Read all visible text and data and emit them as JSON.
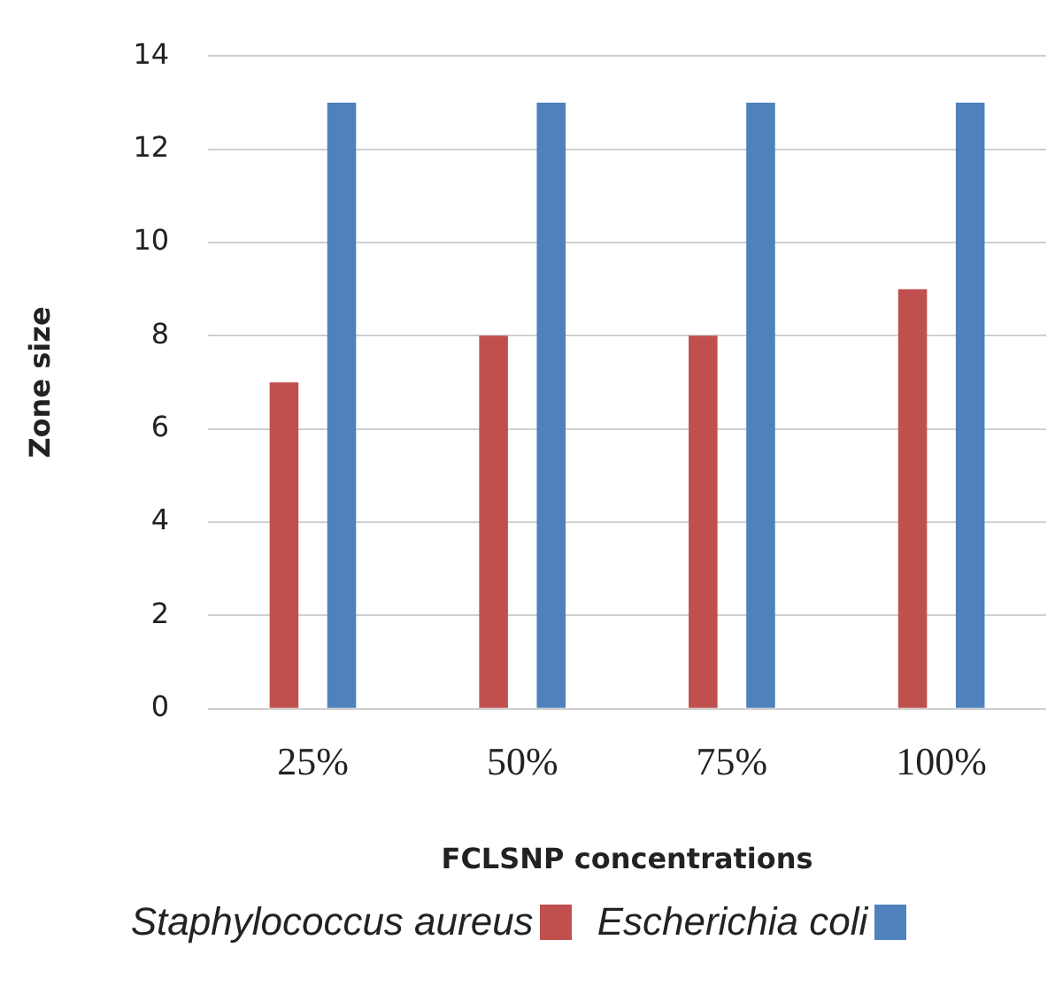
{
  "chart_data": {
    "type": "bar",
    "xlabel": "FCLSNP concentrations",
    "ylabel": "Zone size",
    "categories": [
      "25%",
      "50%",
      "75%",
      "100%"
    ],
    "series": [
      {
        "name": "Staphylococcus aureus",
        "color": "#c0504d",
        "values": [
          7,
          8,
          8,
          9
        ]
      },
      {
        "name": "Escherichia coli",
        "color": "#4f81bd",
        "values": [
          13,
          13,
          13,
          13
        ]
      }
    ],
    "ylim": [
      0,
      14
    ],
    "yticks": [
      0,
      2,
      4,
      6,
      8,
      10,
      12,
      14
    ],
    "grid": "y",
    "legend": "bottom"
  }
}
